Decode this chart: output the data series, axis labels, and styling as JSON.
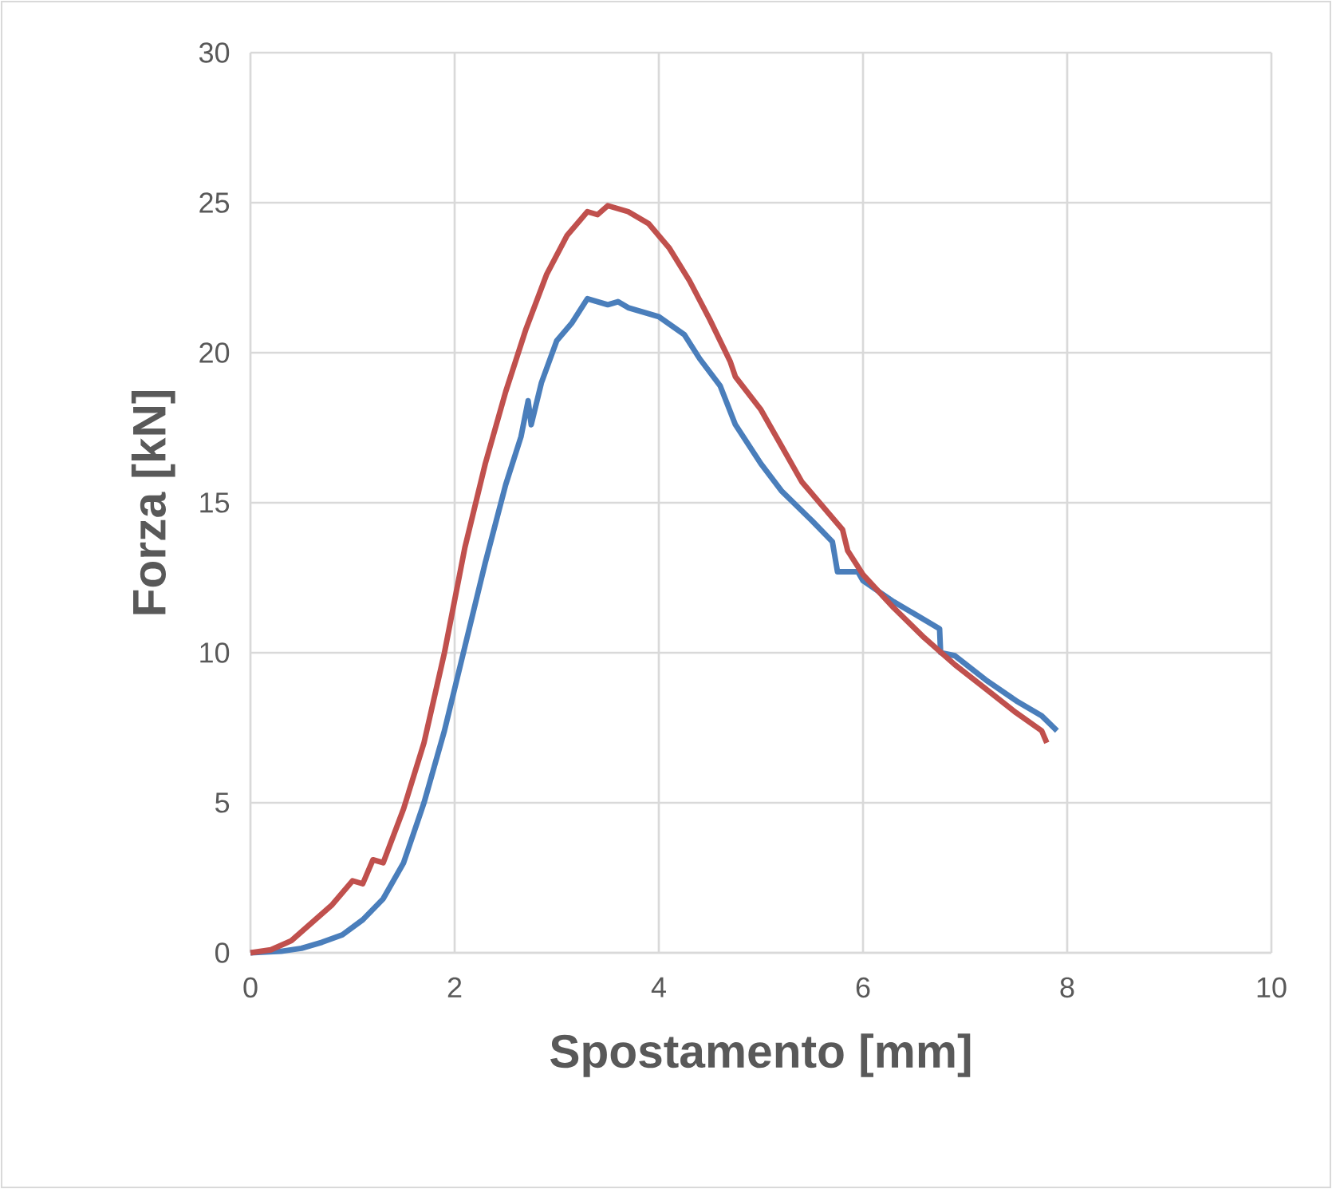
{
  "chart_data": {
    "type": "line",
    "xlabel": "Spostamento [mm]",
    "ylabel": "Forza [kN]",
    "xlim": [
      0,
      10
    ],
    "ylim": [
      0,
      30
    ],
    "xticks": [
      0,
      2,
      4,
      6,
      8,
      10
    ],
    "yticks": [
      0,
      5,
      10,
      15,
      20,
      25,
      30
    ],
    "grid": true,
    "marker": "none",
    "line_style": "solid",
    "series": [
      {
        "color": "#4a7ebb",
        "x": [
          0,
          0.3,
          0.5,
          0.7,
          0.9,
          1.1,
          1.3,
          1.5,
          1.7,
          1.9,
          2.1,
          2.3,
          2.5,
          2.65,
          2.72,
          2.75,
          2.85,
          3.0,
          3.15,
          3.3,
          3.4,
          3.5,
          3.6,
          3.7,
          4.0,
          4.25,
          4.4,
          4.6,
          4.75,
          5.0,
          5.2,
          5.5,
          5.7,
          5.75,
          5.95,
          6.0,
          6.3,
          6.5,
          6.75,
          6.76,
          6.9,
          7.2,
          7.5,
          7.75,
          7.9
        ],
        "values": [
          0,
          0.05,
          0.15,
          0.35,
          0.6,
          1.1,
          1.8,
          3.0,
          5.0,
          7.4,
          10.2,
          13.0,
          15.6,
          17.2,
          18.4,
          17.6,
          19.0,
          20.4,
          21.0,
          21.8,
          21.7,
          21.6,
          21.7,
          21.5,
          21.2,
          20.6,
          19.8,
          18.9,
          17.6,
          16.3,
          15.4,
          14.4,
          13.7,
          12.7,
          12.7,
          12.4,
          11.7,
          11.3,
          10.8,
          10.0,
          9.9,
          9.1,
          8.4,
          7.9,
          7.4
        ]
      },
      {
        "color": "#c0504d",
        "x": [
          0,
          0.2,
          0.4,
          0.6,
          0.8,
          1.0,
          1.1,
          1.2,
          1.3,
          1.5,
          1.7,
          1.9,
          2.1,
          2.3,
          2.5,
          2.7,
          2.9,
          3.1,
          3.3,
          3.4,
          3.5,
          3.7,
          3.9,
          4.1,
          4.3,
          4.5,
          4.7,
          4.75,
          5.0,
          5.2,
          5.4,
          5.6,
          5.8,
          5.85,
          6.0,
          6.3,
          6.6,
          6.9,
          7.2,
          7.5,
          7.75,
          7.8
        ],
        "values": [
          0,
          0.1,
          0.4,
          1.0,
          1.6,
          2.4,
          2.3,
          3.1,
          3.0,
          4.8,
          7.0,
          10.0,
          13.5,
          16.3,
          18.7,
          20.8,
          22.6,
          23.9,
          24.7,
          24.6,
          24.9,
          24.7,
          24.3,
          23.5,
          22.4,
          21.1,
          19.7,
          19.2,
          18.1,
          16.9,
          15.7,
          14.9,
          14.1,
          13.4,
          12.6,
          11.5,
          10.5,
          9.6,
          8.8,
          8.0,
          7.4,
          7.0
        ]
      }
    ]
  }
}
